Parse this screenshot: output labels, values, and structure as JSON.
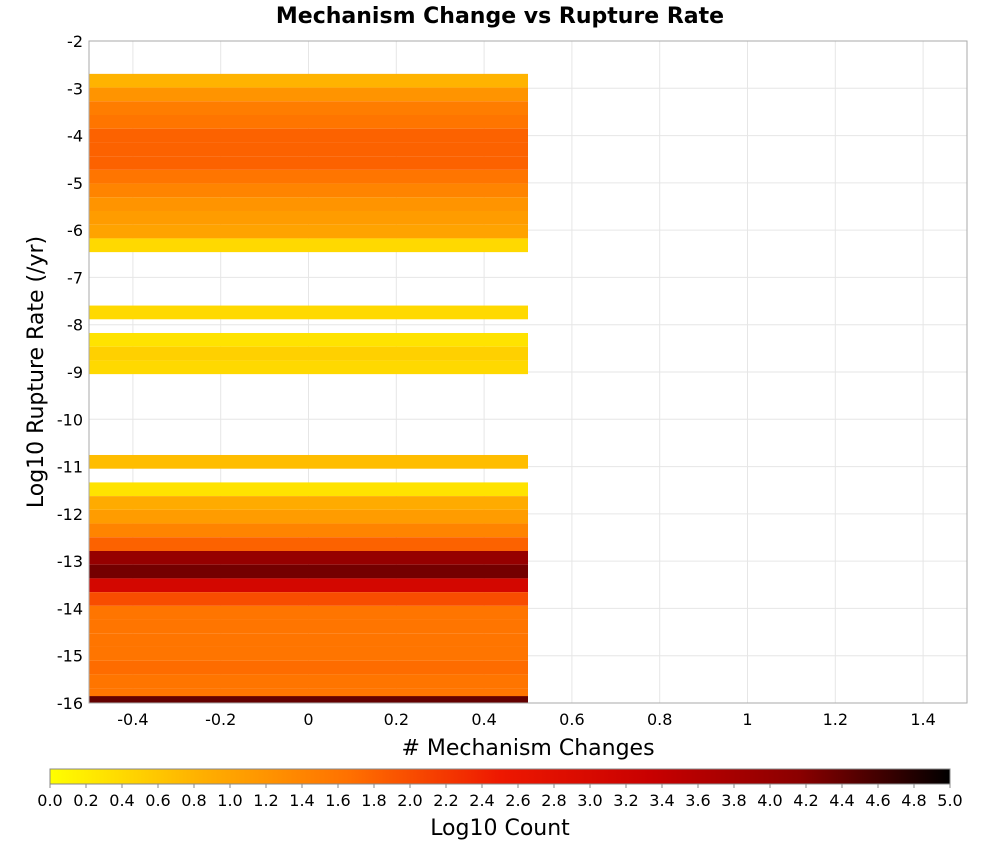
{
  "chart_data": {
    "type": "heatmap",
    "title": "Mechanism Change vs Rupture Rate",
    "xlabel": "# Mechanism Changes",
    "ylabel": "Log10 Rupture Rate (/yr)",
    "xlim": [
      -0.5,
      1.5
    ],
    "ylim": [
      -16,
      -2
    ],
    "x_ticks": [
      -0.4,
      -0.2,
      0,
      0.2,
      0.4,
      0.6,
      0.8,
      1,
      1.2,
      1.4
    ],
    "x_tick_labels": [
      "-0.4",
      "-0.2",
      "0",
      "0.2",
      "0.4",
      "0.6",
      "0.8",
      "1",
      "1.2",
      "1.4"
    ],
    "y_ticks": [
      -2,
      -3,
      -4,
      -5,
      -6,
      -7,
      -8,
      -9,
      -10,
      -11,
      -12,
      -13,
      -14,
      -15,
      -16
    ],
    "y_tick_labels": [
      "-2",
      "-3",
      "-4",
      "-5",
      "-6",
      "-7",
      "-8",
      "-9",
      "-10",
      "-11",
      "-12",
      "-13",
      "-14",
      "-15",
      "-16"
    ],
    "grid": true,
    "cell_x_range": [
      -0.5,
      0.5
    ],
    "cell_height": 0.29,
    "cells": [
      {
        "y": -2.84,
        "value": 0.8
      },
      {
        "y": -3.13,
        "value": 1.2
      },
      {
        "y": -3.42,
        "value": 1.5
      },
      {
        "y": -3.71,
        "value": 1.6
      },
      {
        "y": -4.0,
        "value": 1.8
      },
      {
        "y": -4.29,
        "value": 1.8
      },
      {
        "y": -4.58,
        "value": 1.8
      },
      {
        "y": -4.87,
        "value": 1.6
      },
      {
        "y": -5.16,
        "value": 1.4
      },
      {
        "y": -5.45,
        "value": 1.2
      },
      {
        "y": -5.74,
        "value": 1.1
      },
      {
        "y": -6.03,
        "value": 1.0
      },
      {
        "y": -6.32,
        "value": 0.4
      },
      {
        "y": -7.74,
        "value": 0.4
      },
      {
        "y": -8.32,
        "value": 0.3
      },
      {
        "y": -8.61,
        "value": 0.5
      },
      {
        "y": -8.9,
        "value": 0.4
      },
      {
        "y": -10.9,
        "value": 0.7
      },
      {
        "y": -11.48,
        "value": 0.3
      },
      {
        "y": -11.77,
        "value": 0.9
      },
      {
        "y": -12.06,
        "value": 1.1
      },
      {
        "y": -12.35,
        "value": 1.4
      },
      {
        "y": -12.64,
        "value": 1.8
      },
      {
        "y": -12.93,
        "value": 4.0
      },
      {
        "y": -13.22,
        "value": 4.3
      },
      {
        "y": -13.51,
        "value": 3.1
      },
      {
        "y": -13.8,
        "value": 2.0
      },
      {
        "y": -14.09,
        "value": 1.6
      },
      {
        "y": -14.38,
        "value": 1.6
      },
      {
        "y": -14.67,
        "value": 1.6
      },
      {
        "y": -14.96,
        "value": 1.6
      },
      {
        "y": -15.25,
        "value": 1.7
      },
      {
        "y": -15.54,
        "value": 1.6
      },
      {
        "y": -15.83,
        "value": 1.6
      },
      {
        "y": -16.0,
        "value": 4.4
      }
    ],
    "colorbar": {
      "label": "Log10 Count",
      "range": [
        0,
        5
      ],
      "ticks": [
        0.0,
        0.2,
        0.4,
        0.6,
        0.8,
        1.0,
        1.2,
        1.4,
        1.6,
        1.8,
        2.0,
        2.2,
        2.4,
        2.6,
        2.8,
        3.0,
        3.2,
        3.4,
        3.6,
        3.8,
        4.0,
        4.2,
        4.4,
        4.6,
        4.8,
        5.0
      ],
      "tick_labels": [
        "0.0",
        "0.2",
        "0.4",
        "0.6",
        "0.8",
        "1.0",
        "1.2",
        "1.4",
        "1.6",
        "1.8",
        "2.0",
        "2.2",
        "2.4",
        "2.6",
        "2.8",
        "3.0",
        "3.2",
        "3.4",
        "3.6",
        "3.8",
        "4.0",
        "4.2",
        "4.4",
        "4.6",
        "4.8",
        "5.0"
      ],
      "colors": [
        "#ffff00",
        "#ffb000",
        "#ff7000",
        "#ee1800",
        "#c80000",
        "#8a0000",
        "#000000"
      ]
    }
  }
}
